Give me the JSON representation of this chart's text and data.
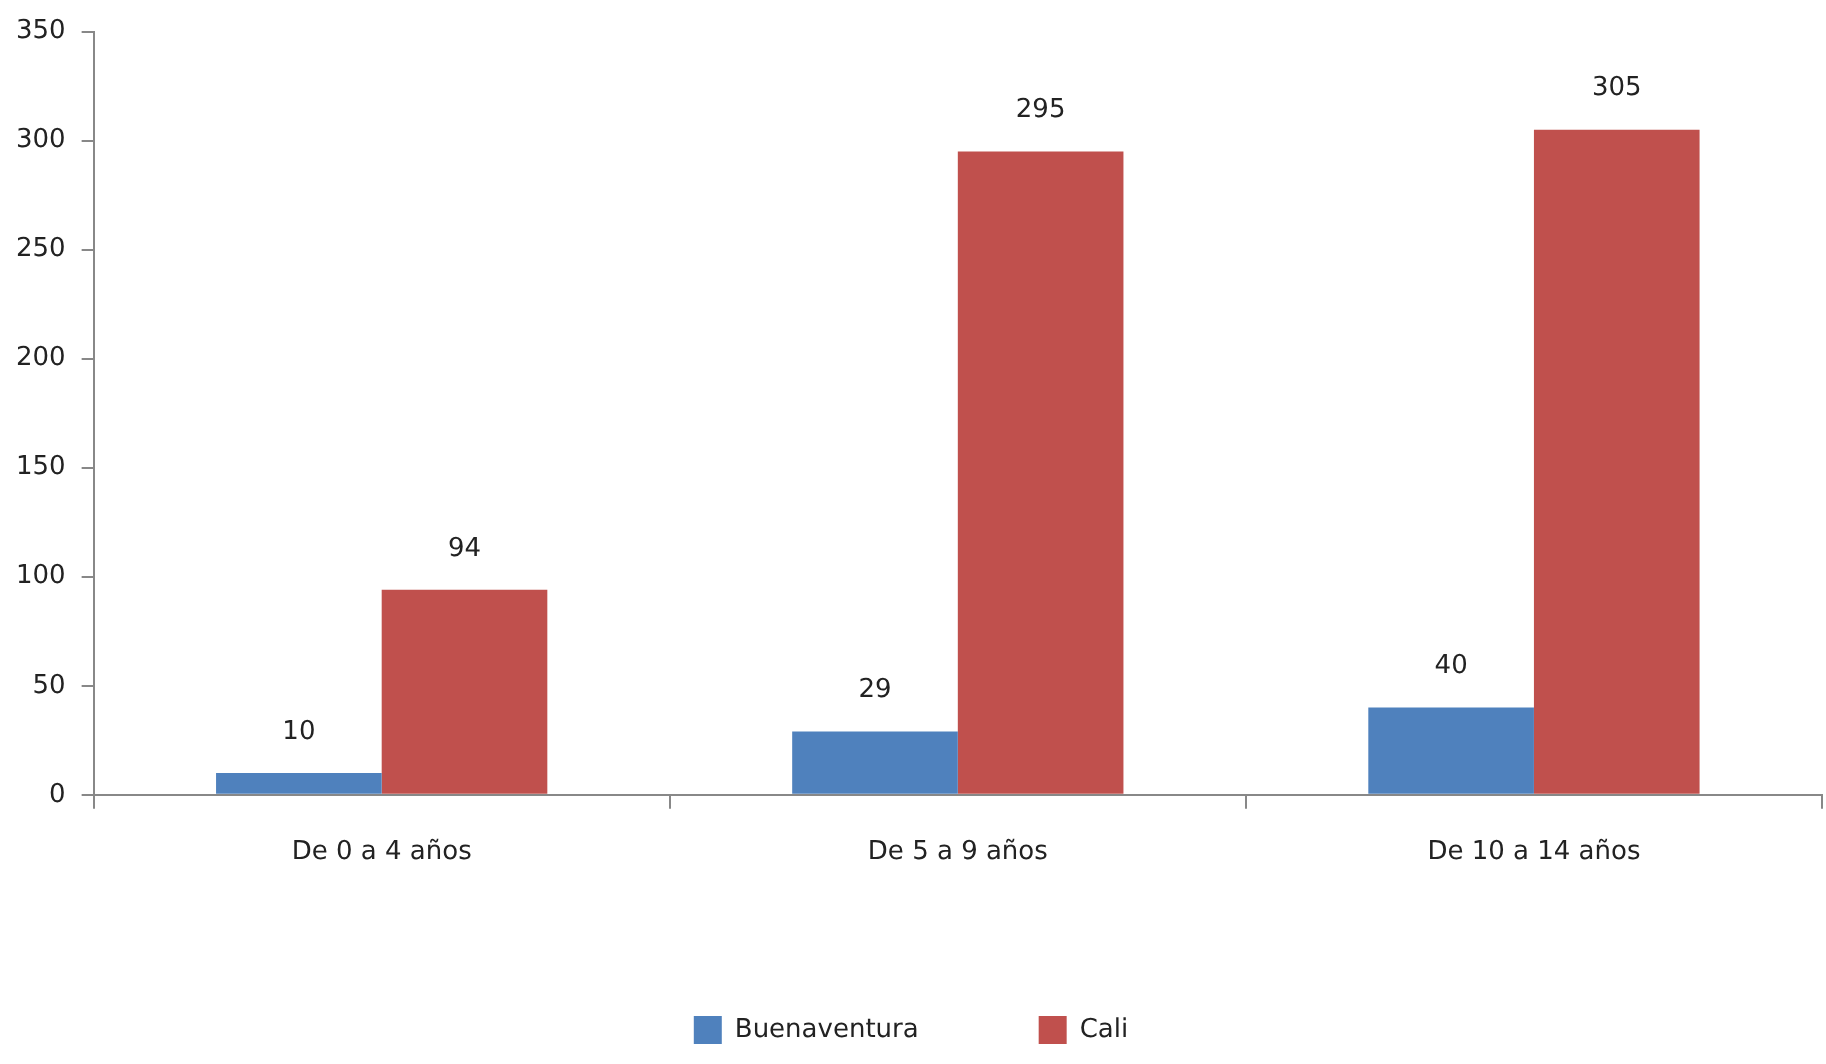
{
  "chart_data": {
    "type": "bar",
    "categories": [
      "De 0 a 4 años",
      "De 5 a 9 años",
      "De 10 a 14 años"
    ],
    "series": [
      {
        "name": "Buenaventura",
        "color": "#4f81bd",
        "values": [
          10,
          29,
          40
        ]
      },
      {
        "name": "Cali",
        "color": "#c0504d",
        "values": [
          94,
          295,
          305
        ]
      }
    ],
    "ylim": [
      0,
      350
    ],
    "yticks": [
      0,
      50,
      100,
      150,
      200,
      250,
      300,
      350
    ],
    "data_labels": true,
    "legend": "bottom"
  }
}
